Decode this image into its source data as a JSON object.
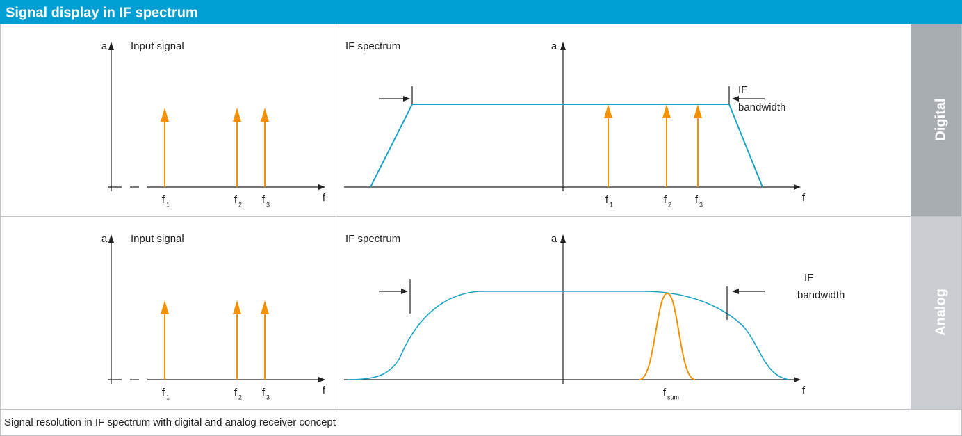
{
  "header": {
    "title": "Signal display in IF spectrum"
  },
  "rows": [
    {
      "side_label": "Digital",
      "input": {
        "axis_y": "a",
        "title": "Input signal",
        "axis_x": "f",
        "ticks": [
          {
            "base": "f",
            "sub": "1"
          },
          {
            "base": "f",
            "sub": "2"
          },
          {
            "base": "f",
            "sub": "3"
          }
        ]
      },
      "spectrum": {
        "title": "IF spectrum",
        "axis_y": "a",
        "axis_x": "f",
        "bandwidth_label": [
          "IF",
          "bandwidth"
        ],
        "ticks": [
          {
            "base": "f",
            "sub": "1"
          },
          {
            "base": "f",
            "sub": "2"
          },
          {
            "base": "f",
            "sub": "3"
          }
        ]
      }
    },
    {
      "side_label": "Analog",
      "input": {
        "axis_y": "a",
        "title": "Input signal",
        "axis_x": "f",
        "ticks": [
          {
            "base": "f",
            "sub": "1"
          },
          {
            "base": "f",
            "sub": "2"
          },
          {
            "base": "f",
            "sub": "3"
          }
        ]
      },
      "spectrum": {
        "title": "IF spectrum",
        "axis_y": "a",
        "axis_x": "f",
        "bandwidth_label": [
          "IF",
          "bandwidth"
        ],
        "ticks": [
          {
            "base": "f",
            "sub": "sum"
          }
        ]
      }
    }
  ],
  "caption": "Signal resolution in IF spectrum with digital and analog receiver concept"
}
